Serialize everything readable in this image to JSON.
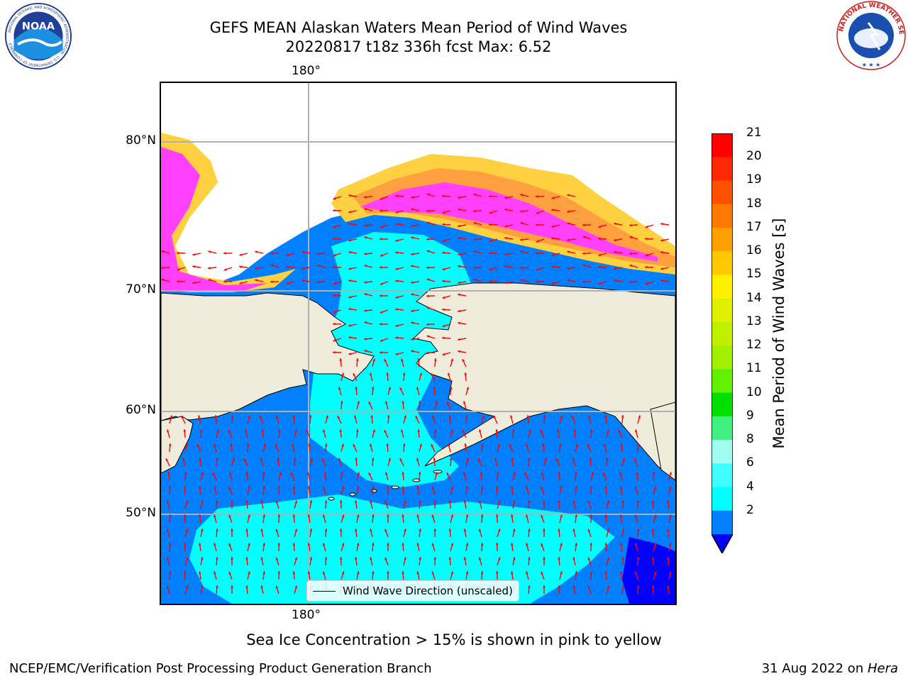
{
  "title": {
    "line1": "GEFS MEAN Alaskan Waters Mean Period of Wind Waves",
    "line2": "20220817 t18z 336h fcst   Max: 6.52"
  },
  "map": {
    "lon_label_top": "180°",
    "lon_label_bottom": "180°",
    "lat_labels": [
      "80°N",
      "70°N",
      "60°N",
      "50°N"
    ],
    "colors": {
      "land": "#efecdc",
      "ocean_2_4": "#0080ff",
      "ocean_4_6": "#00ffff",
      "ocean_lt2": "#0000ff",
      "ice_pink": "#ff40ff",
      "ice_orange": "#ffa040",
      "ice_yellow": "#ffd040",
      "arrow": "#ff0000",
      "grid": "#b0b0b0"
    }
  },
  "legend": {
    "label": "Wind Wave Direction (unscaled)"
  },
  "colorbar": {
    "label": "Mean Period of Wind Waves [s]",
    "ticks": [
      "21",
      "20",
      "19",
      "18",
      "17",
      "16",
      "15",
      "14",
      "13",
      "12",
      "11",
      "10",
      "9",
      "8",
      "6",
      "4",
      "2"
    ],
    "colors": [
      "#ff0000",
      "#ff2800",
      "#ff5000",
      "#ff7800",
      "#ffa000",
      "#ffc800",
      "#fff000",
      "#e0f000",
      "#c0f000",
      "#a0f000",
      "#60f000",
      "#00e000",
      "#40f080",
      "#a0fff0",
      "#40ffff",
      "#00ffff",
      "#0080ff"
    ],
    "extend_min_color": "#0000ff"
  },
  "footnote": "Sea Ice Concentration > 15% is shown in pink to yellow",
  "footer": {
    "left": "NCEP/EMC/Verification Post Processing Product Generation Branch",
    "right_date": "31 Aug 2022 on ",
    "right_host": "Hera"
  },
  "logos": {
    "noaa_text": "NOAA",
    "noaa_ring": "NATIONAL OCEANIC AND ATMOSPHERIC ADMINISTRATION · U.S. DEPARTMENT OF COMMERCE",
    "nws_ring": "NATIONAL WEATHER SERVICE"
  }
}
